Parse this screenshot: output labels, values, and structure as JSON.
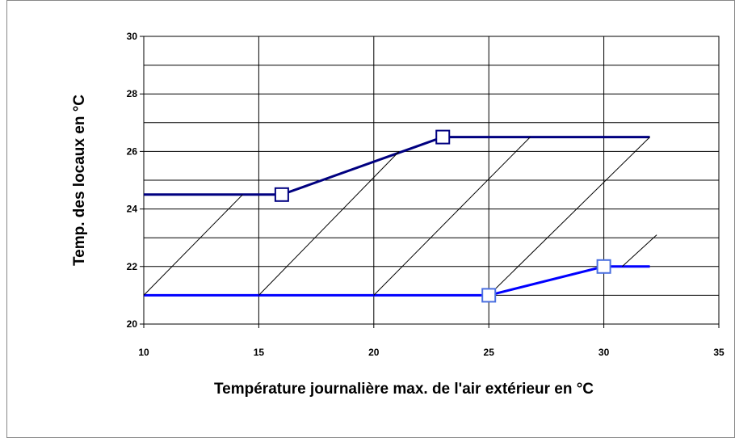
{
  "chart_data": {
    "type": "line",
    "xlabel": "Température journalière max. de l'air extérieur en °C",
    "ylabel": "Temp. des locaux en  °C",
    "xlim": [
      10,
      35
    ],
    "xticks": [
      10,
      15,
      20,
      25,
      30,
      35
    ],
    "ylim": [
      20,
      30
    ],
    "yticks": [
      20,
      22,
      24,
      26,
      28,
      30
    ],
    "y_minor_ticks": [
      21,
      23,
      25,
      27,
      29
    ],
    "grid": true,
    "series": [
      {
        "color": "#000080",
        "width": 3,
        "x": [
          10,
          16,
          23,
          32
        ],
        "values": [
          24.5,
          24.5,
          26.5,
          26.5
        ]
      },
      {
        "color": "#0000ff",
        "width": 3,
        "x": [
          10,
          25,
          30,
          32
        ],
        "values": [
          21,
          21,
          22,
          22
        ]
      },
      {
        "color": "#000000",
        "width": 1,
        "x": [
          10,
          14.3
        ],
        "values": [
          21,
          24.5
        ]
      },
      {
        "color": "#000000",
        "width": 1,
        "x": [
          15,
          21.1
        ],
        "values": [
          21,
          26
        ]
      },
      {
        "color": "#000000",
        "width": 1,
        "x": [
          20,
          26.8
        ],
        "values": [
          21,
          26.5
        ]
      },
      {
        "color": "#000000",
        "width": 1,
        "x": [
          25,
          32
        ],
        "values": [
          21,
          26.5
        ]
      },
      {
        "color": "#000000",
        "width": 1,
        "x": [
          30.8,
          32.3
        ],
        "values": [
          22,
          23.1
        ]
      }
    ],
    "markers": [
      {
        "color": "#000080",
        "x": [
          16,
          23
        ],
        "values": [
          24.5,
          26.5
        ]
      },
      {
        "color": "#4a6fe0",
        "x": [
          25,
          30
        ],
        "values": [
          21,
          22
        ]
      }
    ]
  }
}
